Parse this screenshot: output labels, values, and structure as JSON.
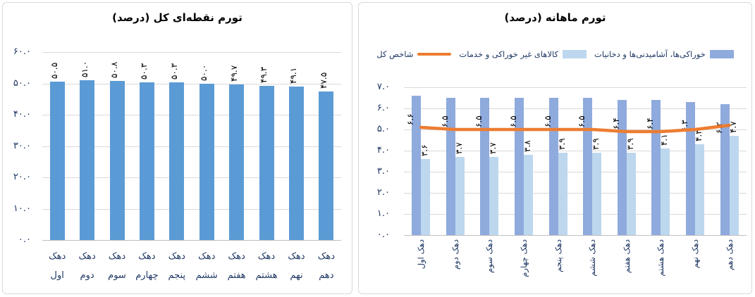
{
  "page": {
    "background": "#FFFFFF"
  },
  "colors": {
    "grid": "#D9D9D9",
    "axis_line": "#BFBFBF",
    "axis_text": "#1F3864",
    "value_label_text": "#000000",
    "left_bar": "#5B9BD5",
    "food_bar": "#8FAADC",
    "nonfood_bar": "#BDD7EE",
    "total_line": "#ED7D31"
  },
  "chart_data": [
    {
      "type": "bar",
      "title": "تورم نقطه‌ای کل (درصد)",
      "categories": [
        "دهک اول",
        "دهک دوم",
        "دهک سوم",
        "دهک چهارم",
        "دهک پنجم",
        "دهک ششم",
        "دهک هفتم",
        "دهک هشتم",
        "دهک نهم",
        "دهک دهم"
      ],
      "values": [
        50.5,
        51.0,
        50.8,
        50.3,
        50.3,
        50.0,
        49.7,
        49.3,
        49.1,
        47.5
      ],
      "value_labels": [
        "۵۰.۵",
        "۵۱.۰",
        "۵۰.۸",
        "۵۰.۳",
        "۵۰.۳",
        "۵۰.۰",
        "۴۹.۷",
        "۴۹.۳",
        "۴۹.۱",
        "۴۷.۵"
      ],
      "bar_color": "#5B9BD5",
      "ylim": [
        0,
        60
      ],
      "grid": true,
      "legend_position": "none",
      "y_ticks": [
        {
          "v": 60,
          "label": "۶۰.۰"
        },
        {
          "v": 50,
          "label": "۵۰.۰"
        },
        {
          "v": 40,
          "label": "۴۰.۰"
        },
        {
          "v": 30,
          "label": "۳۰.۰"
        },
        {
          "v": 20,
          "label": "۲۰.۰"
        },
        {
          "v": 10,
          "label": "۱۰.۰"
        },
        {
          "v": 0,
          "label": "۰.۰"
        }
      ]
    },
    {
      "type": "bar+line",
      "title": "تورم ماهانه (درصد)",
      "categories": [
        "دهک اول",
        "دهک دوم",
        "دهک سوم",
        "دهک چهارم",
        "دهک پنجم",
        "دهک ششم",
        "دهک هفتم",
        "دهک هشتم",
        "دهک نهم",
        "دهک دهم"
      ],
      "series": [
        {
          "name": "خوراکی‌ها، آشامیدنی‌ها و دخانیات",
          "type": "bar",
          "color": "#8FAADC",
          "values": [
            6.6,
            6.5,
            6.5,
            6.5,
            6.5,
            6.5,
            6.4,
            6.4,
            6.3,
            6.2
          ],
          "value_labels": [
            "۶.۶",
            "۶.۵",
            "۶.۵",
            "۶.۵",
            "۶.۵",
            "۶.۵",
            "۶.۴",
            "۶.۴",
            "۶.۳",
            "۶.۲"
          ]
        },
        {
          "name": "کالاهای غیر خوراکی و خدمات",
          "type": "bar",
          "color": "#BDD7EE",
          "values": [
            3.6,
            3.7,
            3.7,
            3.8,
            3.9,
            3.9,
            3.9,
            4.1,
            4.3,
            4.7
          ],
          "value_labels": [
            "۳.۶",
            "۳.۷",
            "۳.۷",
            "۳.۸",
            "۳.۹",
            "۳.۹",
            "۳.۹",
            "۴.۱",
            "۴.۳",
            "۴.۷"
          ]
        },
        {
          "name": "شاخص کل",
          "type": "line",
          "color": "#ED7D31",
          "values": [
            5.1,
            5.0,
            5.0,
            5.0,
            5.0,
            5.0,
            4.9,
            4.9,
            5.0,
            5.2
          ]
        }
      ],
      "ylim": [
        0,
        7
      ],
      "grid": true,
      "legend_position": "top",
      "y_ticks": [
        {
          "v": 7,
          "label": "۷.۰"
        },
        {
          "v": 6,
          "label": "۶.۰"
        },
        {
          "v": 5,
          "label": "۵.۰"
        },
        {
          "v": 4,
          "label": "۴.۰"
        },
        {
          "v": 3,
          "label": "۳.۰"
        },
        {
          "v": 2,
          "label": "۲.۰"
        },
        {
          "v": 1,
          "label": "۱.۰"
        },
        {
          "v": 0,
          "label": "۰.۰"
        }
      ]
    }
  ]
}
